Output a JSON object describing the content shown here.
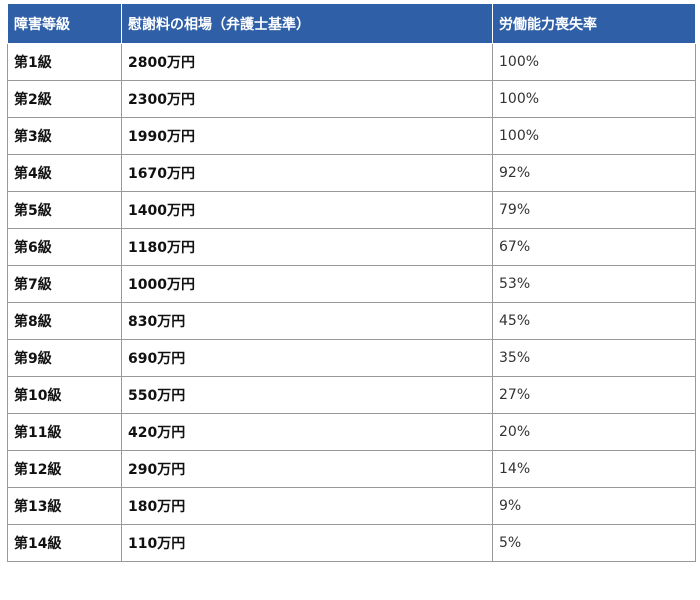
{
  "colors": {
    "header_bg": "#2f5fa7",
    "header_text": "#ffffff",
    "border": "#999999"
  },
  "table": {
    "headers": [
      "障害等級",
      "慰謝料の相場（弁護士基準）",
      "労働能力喪失率"
    ],
    "rows": [
      {
        "grade": "第1級",
        "amount": "2800万円",
        "rate": "100%"
      },
      {
        "grade": "第2級",
        "amount": "2300万円",
        "rate": "100%"
      },
      {
        "grade": "第3級",
        "amount": "1990万円",
        "rate": "100%"
      },
      {
        "grade": "第4級",
        "amount": "1670万円",
        "rate": "92%"
      },
      {
        "grade": "第5級",
        "amount": "1400万円",
        "rate": "79%"
      },
      {
        "grade": "第6級",
        "amount": "1180万円",
        "rate": "67%"
      },
      {
        "grade": "第7級",
        "amount": "1000万円",
        "rate": "53%"
      },
      {
        "grade": "第8級",
        "amount": "830万円",
        "rate": "45%"
      },
      {
        "grade": "第9級",
        "amount": "690万円",
        "rate": "35%"
      },
      {
        "grade": "第10級",
        "amount": "550万円",
        "rate": "27%"
      },
      {
        "grade": "第11級",
        "amount": "420万円",
        "rate": "20%"
      },
      {
        "grade": "第12級",
        "amount": "290万円",
        "rate": "14%"
      },
      {
        "grade": "第13級",
        "amount": "180万円",
        "rate": "9%"
      },
      {
        "grade": "第14級",
        "amount": "110万円",
        "rate": "5%"
      }
    ]
  }
}
